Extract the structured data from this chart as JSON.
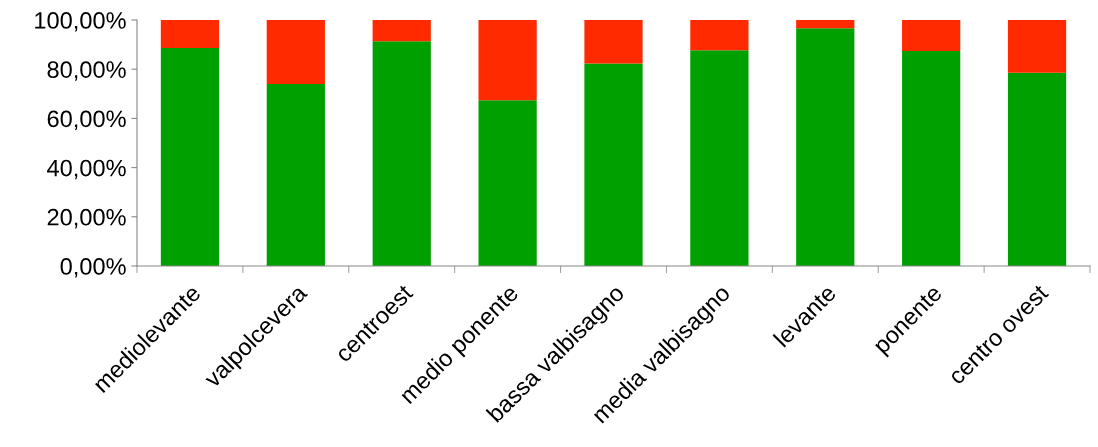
{
  "chart_data": {
    "type": "bar",
    "stacked": true,
    "categories": [
      "mediolevante",
      "valpolcevera",
      "centroest",
      "medio ponente",
      "bassa valbisagno",
      "media valbisagno",
      "levante",
      "ponente",
      "centro ovest"
    ],
    "series": [
      {
        "color": "#00a000",
        "values": [
          88.6,
          74.0,
          91.4,
          67.4,
          82.3,
          87.7,
          96.6,
          87.4,
          78.6
        ]
      },
      {
        "color": "#ff2a00",
        "values": [
          11.4,
          26.0,
          8.6,
          32.6,
          17.7,
          12.3,
          3.4,
          12.6,
          21.4
        ]
      }
    ],
    "ylim": [
      0,
      100
    ],
    "yticks": [
      {
        "value": 0,
        "label": "0,00%"
      },
      {
        "value": 20,
        "label": "20,00%"
      },
      {
        "value": 40,
        "label": "40,00%"
      },
      {
        "value": 60,
        "label": "60,00%"
      },
      {
        "value": 80,
        "label": "80,00%"
      },
      {
        "value": 100,
        "label": "100,00%"
      }
    ],
    "grid": false,
    "legend": false
  }
}
